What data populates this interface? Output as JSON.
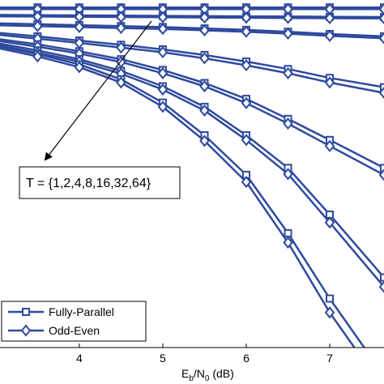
{
  "chart_data": {
    "type": "line",
    "xlabel_main": "E",
    "xlabel_sub_b": "b",
    "xlabel_mid": "/N",
    "xlabel_sub_0": "0",
    "xlabel_unit": " (dB)",
    "xlim": [
      3.05,
      7.65
    ],
    "ylim_log10": [
      -7.3,
      0.15
    ],
    "yscale": "log",
    "x_ticks": [
      4,
      5,
      6,
      7
    ],
    "x_tick_labels": [
      "4",
      "5",
      "6",
      "7"
    ],
    "grid": false,
    "legend_position": "bottom-left",
    "annotation": "T = {1,2,4,8,16,32,64}",
    "series": [
      {
        "name": "Fully-Parallel",
        "marker": "square",
        "T": 1,
        "x": [
          3,
          3.5,
          4,
          4.5,
          5,
          5.5,
          6,
          6.5,
          7,
          7.65
        ],
        "y": [
          -0.01,
          -0.01,
          -0.01,
          -0.01,
          -0.01,
          -0.01,
          -0.01,
          -0.01,
          -0.01,
          -0.01
        ]
      },
      {
        "name": "Odd-Even",
        "marker": "diamond",
        "T": 1,
        "x": [
          3,
          3.5,
          4,
          4.5,
          5,
          5.5,
          6,
          6.5,
          7,
          7.65
        ],
        "y": [
          -0.045,
          -0.045,
          -0.045,
          -0.045,
          -0.045,
          -0.045,
          -0.045,
          -0.045,
          -0.045,
          -0.045
        ]
      },
      {
        "name": "Fully-Parallel",
        "marker": "square",
        "T": 2,
        "x": [
          3,
          3.5,
          4,
          4.5,
          5,
          5.5,
          6,
          6.5,
          7,
          7.65
        ],
        "y": [
          -0.17,
          -0.175,
          -0.18,
          -0.185,
          -0.19,
          -0.195,
          -0.2,
          -0.205,
          -0.21,
          -0.215
        ]
      },
      {
        "name": "Odd-Even",
        "marker": "diamond",
        "T": 2,
        "x": [
          3,
          3.5,
          4,
          4.5,
          5,
          5.5,
          6,
          6.5,
          7,
          7.65
        ],
        "y": [
          -0.2,
          -0.205,
          -0.21,
          -0.215,
          -0.22,
          -0.225,
          -0.23,
          -0.235,
          -0.24,
          -0.245
        ]
      },
      {
        "name": "Fully-Parallel",
        "marker": "square",
        "T": 4,
        "x": [
          3,
          3.5,
          4,
          4.5,
          5,
          5.5,
          6,
          6.5,
          7,
          7.65
        ],
        "y": [
          -0.35,
          -0.37,
          -0.39,
          -0.41,
          -0.43,
          -0.46,
          -0.49,
          -0.53,
          -0.58,
          -0.63
        ]
      },
      {
        "name": "Odd-Even",
        "marker": "diamond",
        "T": 4,
        "x": [
          3,
          3.5,
          4,
          4.5,
          5,
          5.5,
          6,
          6.5,
          7,
          7.65
        ],
        "y": [
          -0.39,
          -0.41,
          -0.43,
          -0.45,
          -0.47,
          -0.5,
          -0.53,
          -0.57,
          -0.62,
          -0.67
        ]
      },
      {
        "name": "Fully-Parallel",
        "marker": "square",
        "T": 8,
        "x": [
          3,
          3.5,
          4,
          4.5,
          5,
          5.5,
          6,
          6.5,
          7,
          7.65
        ],
        "y": [
          -0.55,
          -0.63,
          -0.72,
          -0.81,
          -0.91,
          -1.03,
          -1.17,
          -1.33,
          -1.52,
          -1.72
        ]
      },
      {
        "name": "Odd-Even",
        "marker": "diamond",
        "T": 8,
        "x": [
          3,
          3.5,
          4,
          4.5,
          5,
          5.5,
          6,
          6.5,
          7,
          7.65
        ],
        "y": [
          -0.59,
          -0.68,
          -0.77,
          -0.87,
          -0.97,
          -1.1,
          -1.25,
          -1.42,
          -1.62,
          -1.84
        ]
      },
      {
        "name": "Fully-Parallel",
        "marker": "square",
        "T": 16,
        "x": [
          3,
          3.5,
          4,
          4.5,
          5,
          5.5,
          6,
          6.5,
          7,
          7.65
        ],
        "y": [
          -0.68,
          -0.8,
          -0.95,
          -1.12,
          -1.35,
          -1.63,
          -1.97,
          -2.4,
          -2.85,
          -3.45
        ]
      },
      {
        "name": "Odd-Even",
        "marker": "diamond",
        "T": 16,
        "x": [
          3,
          3.5,
          4,
          4.5,
          5,
          5.5,
          6,
          6.5,
          7,
          7.65
        ],
        "y": [
          -0.72,
          -0.85,
          -1.0,
          -1.18,
          -1.42,
          -1.7,
          -2.06,
          -2.5,
          -2.98,
          -3.6
        ]
      },
      {
        "name": "Fully-Parallel",
        "marker": "square",
        "T": 32,
        "x": [
          3,
          3.5,
          4,
          4.5,
          5,
          5.5,
          6,
          6.5,
          7,
          7.65
        ],
        "y": [
          -0.77,
          -0.93,
          -1.12,
          -1.37,
          -1.7,
          -2.14,
          -2.75,
          -3.45,
          -4.45,
          -5.8
        ]
      },
      {
        "name": "Odd-Even",
        "marker": "diamond",
        "T": 32,
        "x": [
          3,
          3.5,
          4,
          4.5,
          5,
          5.5,
          6,
          6.5,
          7,
          7.65
        ],
        "y": [
          -0.81,
          -0.98,
          -1.17,
          -1.43,
          -1.77,
          -2.22,
          -2.85,
          -3.58,
          -4.62,
          -6.0
        ]
      },
      {
        "name": "Fully-Parallel",
        "marker": "square",
        "T": 64,
        "x": [
          3,
          3.5,
          4,
          4.5,
          5,
          5.5,
          6,
          6.5,
          7,
          7.65
        ],
        "y": [
          -0.83,
          -1.01,
          -1.23,
          -1.55,
          -2.05,
          -2.75,
          -3.6,
          -4.85,
          -6.25,
          -7.9
        ]
      },
      {
        "name": "Odd-Even",
        "marker": "diamond",
        "T": 64,
        "x": [
          3,
          3.5,
          4,
          4.5,
          5,
          5.5,
          6,
          6.5,
          7,
          7.65
        ],
        "y": [
          -0.87,
          -1.06,
          -1.29,
          -1.62,
          -2.14,
          -2.87,
          -3.75,
          -5.05,
          -6.55,
          -8.2
        ]
      }
    ],
    "legend": [
      {
        "label": "Fully-Parallel",
        "marker": "square"
      },
      {
        "label": "Odd-Even",
        "marker": "diamond"
      }
    ],
    "line_color": "#2e4a9e"
  }
}
